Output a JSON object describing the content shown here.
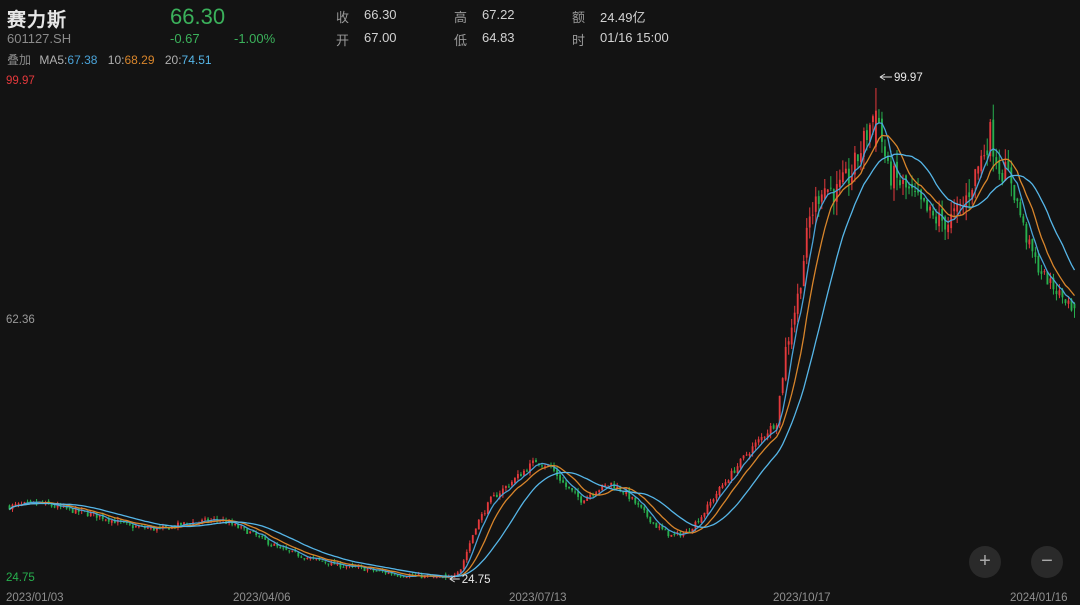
{
  "header": {
    "stock_name": "赛力斯",
    "stock_code": "601127.SH",
    "last_price": "66.30",
    "change": "-0.67",
    "change_pct": "-1.00%",
    "stats": {
      "close_label": "收",
      "close_value": "66.30",
      "open_label": "开",
      "open_value": "67.00",
      "high_label": "高",
      "high_value": "67.22",
      "low_label": "低",
      "low_value": "64.83",
      "amount_label": "额",
      "amount_value": "24.49亿",
      "time_label": "时",
      "time_value": "01/16 15:00"
    },
    "overlay_label": "叠加",
    "ma5_label": "MA5",
    "ma5_value": "67.38",
    "ma10_label": "10",
    "ma10_value": "68.29",
    "ma20_label": "20",
    "ma20_value": "74.51"
  },
  "colors": {
    "up": "#e4393c",
    "down": "#27b04e",
    "ma5": "#4aa3d8",
    "ma10": "#d8852b",
    "ma20": "#56b6e8",
    "background": "#131313"
  },
  "zoom": {
    "in_icon": "plus-icon",
    "out_icon": "minus-icon",
    "in_label": "+",
    "out_label": "−"
  },
  "chart_data": {
    "type": "candlestick",
    "y_axis": {
      "max_label": "99.97",
      "mid_label": "62.36",
      "min_label": "24.75",
      "ylim": [
        24.75,
        99.97
      ]
    },
    "x_axis": {
      "tick_labels": [
        "2023/01/03",
        "2023/04/06",
        "2023/07/13",
        "2023/10/17",
        "2024/01/16"
      ]
    },
    "annotations": {
      "high_marker": "99.97",
      "low_marker": "24.75"
    },
    "anchors": [
      [
        0,
        36.0
      ],
      [
        10,
        36.5
      ],
      [
        20,
        35.5
      ],
      [
        30,
        34.5
      ],
      [
        40,
        33.0
      ],
      [
        50,
        32.5
      ],
      [
        60,
        33.5
      ],
      [
        70,
        34.0
      ],
      [
        80,
        32.0
      ],
      [
        90,
        29.5
      ],
      [
        100,
        28.0
      ],
      [
        110,
        27.0
      ],
      [
        120,
        26.3
      ],
      [
        130,
        25.5
      ],
      [
        140,
        25.2
      ],
      [
        145,
        24.9
      ],
      [
        150,
        26.5
      ],
      [
        155,
        33.0
      ],
      [
        160,
        37.0
      ],
      [
        165,
        39.0
      ],
      [
        170,
        41.0
      ],
      [
        175,
        43.0
      ],
      [
        180,
        42.0
      ],
      [
        185,
        39.0
      ],
      [
        190,
        37.0
      ],
      [
        195,
        38.5
      ],
      [
        200,
        39.5
      ],
      [
        205,
        38.0
      ],
      [
        210,
        35.5
      ],
      [
        215,
        33.0
      ],
      [
        220,
        31.5
      ],
      [
        225,
        32.0
      ],
      [
        230,
        34.5
      ],
      [
        235,
        38.0
      ],
      [
        240,
        41.0
      ],
      [
        245,
        44.0
      ],
      [
        250,
        46.5
      ],
      [
        255,
        49.0
      ],
      [
        258,
        60.0
      ],
      [
        262,
        68.0
      ],
      [
        266,
        80.0
      ],
      [
        270,
        85.0
      ],
      [
        275,
        84.0
      ],
      [
        280,
        87.0
      ],
      [
        285,
        93.0
      ],
      [
        288,
        97.0
      ],
      [
        292,
        87.0
      ],
      [
        297,
        85.0
      ],
      [
        302,
        82.5
      ],
      [
        307,
        80.0
      ],
      [
        312,
        79.5
      ],
      [
        317,
        82.0
      ],
      [
        322,
        88.0
      ],
      [
        326,
        93.0
      ],
      [
        329,
        88.0
      ],
      [
        333,
        86.0
      ],
      [
        338,
        77.0
      ],
      [
        342,
        72.5
      ],
      [
        346,
        70.0
      ],
      [
        350,
        68.0
      ],
      [
        354,
        66.3
      ]
    ]
  }
}
